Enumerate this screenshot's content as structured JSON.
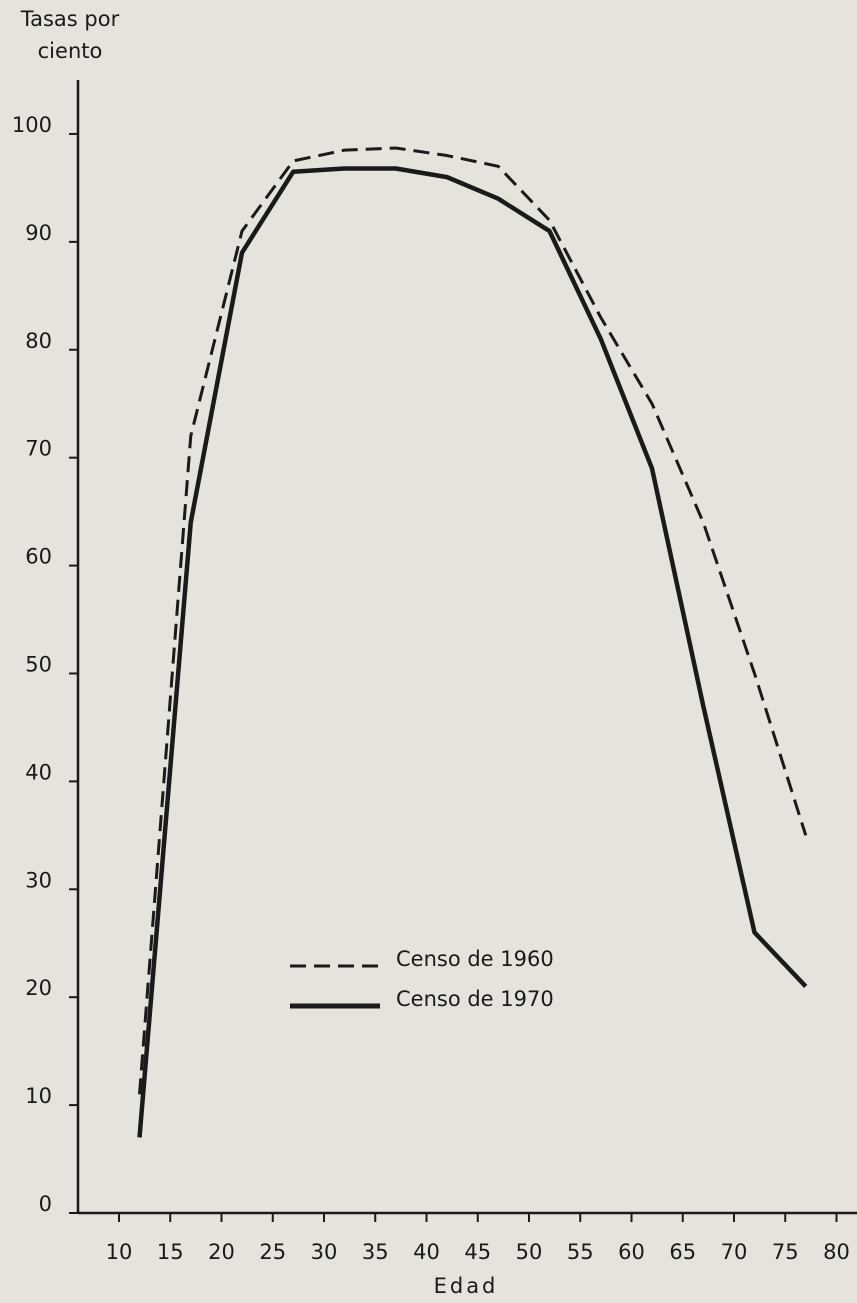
{
  "chart_data": {
    "type": "line",
    "ylabel": [
      "Tasas por",
      "ciento"
    ],
    "xlabel": "Edad",
    "xlim": [
      6,
      82
    ],
    "xticks": [
      10,
      15,
      20,
      25,
      30,
      35,
      40,
      45,
      50,
      55,
      60,
      65,
      70,
      75,
      80
    ],
    "ylim": [
      0,
      105
    ],
    "yticks": [
      0,
      10,
      20,
      30,
      40,
      50,
      60,
      70,
      80,
      90,
      100
    ],
    "x": [
      12,
      17,
      22,
      27,
      32,
      37,
      42,
      47,
      52,
      57,
      62,
      67,
      72,
      77
    ],
    "legend": "lower left",
    "series": [
      {
        "name": "Censo de 1960",
        "color": "#1a1a1a",
        "style": "dashed",
        "values": [
          11,
          72,
          91,
          97.5,
          98.5,
          98.7,
          98,
          97,
          92,
          83,
          75,
          64,
          50,
          35
        ]
      },
      {
        "name": "Censo de 1970",
        "color": "#1a1a1a",
        "style": "solid",
        "values": [
          7,
          64,
          89,
          96.5,
          96.8,
          96.8,
          96,
          94,
          91,
          81,
          69,
          47,
          26,
          21
        ]
      }
    ]
  }
}
